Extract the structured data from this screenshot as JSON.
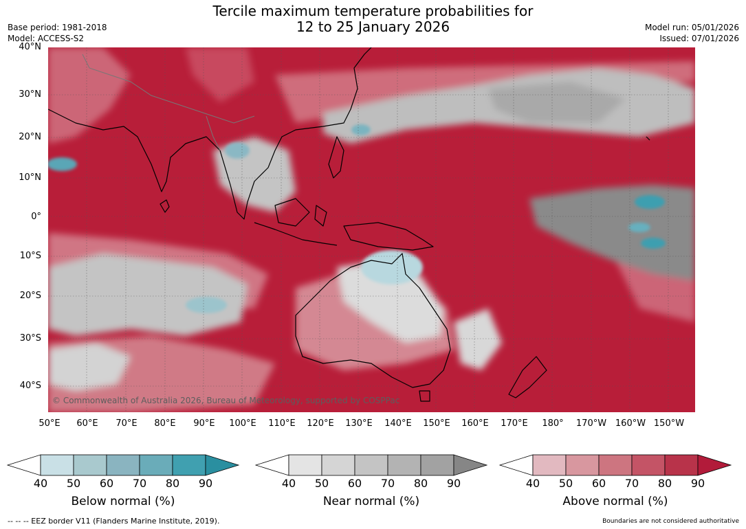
{
  "title": {
    "line1": "Tercile maximum temperature probabilities for",
    "line2": "12 to 25 January 2026"
  },
  "meta_left": {
    "base_period": "Base period: 1981-2018",
    "model": "Model: ACCESS-S2"
  },
  "meta_right": {
    "model_run": "Model run: 05/01/2026",
    "issued": "Issued: 07/01/2026"
  },
  "map": {
    "lat_labels": [
      "40°N",
      "30°N",
      "20°N",
      "10°N",
      "0°",
      "10°S",
      "20°S",
      "30°S",
      "40°S"
    ],
    "lon_labels": [
      "50°E",
      "60°E",
      "70°E",
      "80°E",
      "90°E",
      "100°E",
      "110°E",
      "120°E",
      "130°E",
      "140°E",
      "150°E",
      "160°E",
      "170°E",
      "180°",
      "170°W",
      "160°W",
      "150°W"
    ],
    "copyright": "© Commonwealth of Australia 2026, Bureau of Meteorology, supported by COSPPac"
  },
  "colorbars": [
    {
      "id": "below",
      "label": "Below normal (%)",
      "ticks": [
        "40",
        "50",
        "60",
        "70",
        "80",
        "90"
      ],
      "colors": [
        "#ffffff",
        "#c9e0e6",
        "#a9c9ce",
        "#8ab4c0",
        "#6aacb9",
        "#40a0b0",
        "#2a8fa0"
      ]
    },
    {
      "id": "near",
      "label": "Near normal (%)",
      "ticks": [
        "40",
        "50",
        "60",
        "70",
        "80",
        "90"
      ],
      "colors": [
        "#ffffff",
        "#e4e4e4",
        "#d5d5d5",
        "#c4c4c4",
        "#b3b3b3",
        "#a2a2a2",
        "#868686"
      ]
    },
    {
      "id": "above",
      "label": "Above normal (%)",
      "ticks": [
        "40",
        "50",
        "60",
        "70",
        "80",
        "90"
      ],
      "colors": [
        "#ffffff",
        "#e2b9c0",
        "#d8979f",
        "#cd7580",
        "#c45466",
        "#b8334a",
        "#b21b3a"
      ]
    }
  ],
  "footer": {
    "left": "--  --  -- EEZ border V11 (Flanders Marine Institute, 2019).",
    "right": "Boundaries are not considered authoritative"
  }
}
